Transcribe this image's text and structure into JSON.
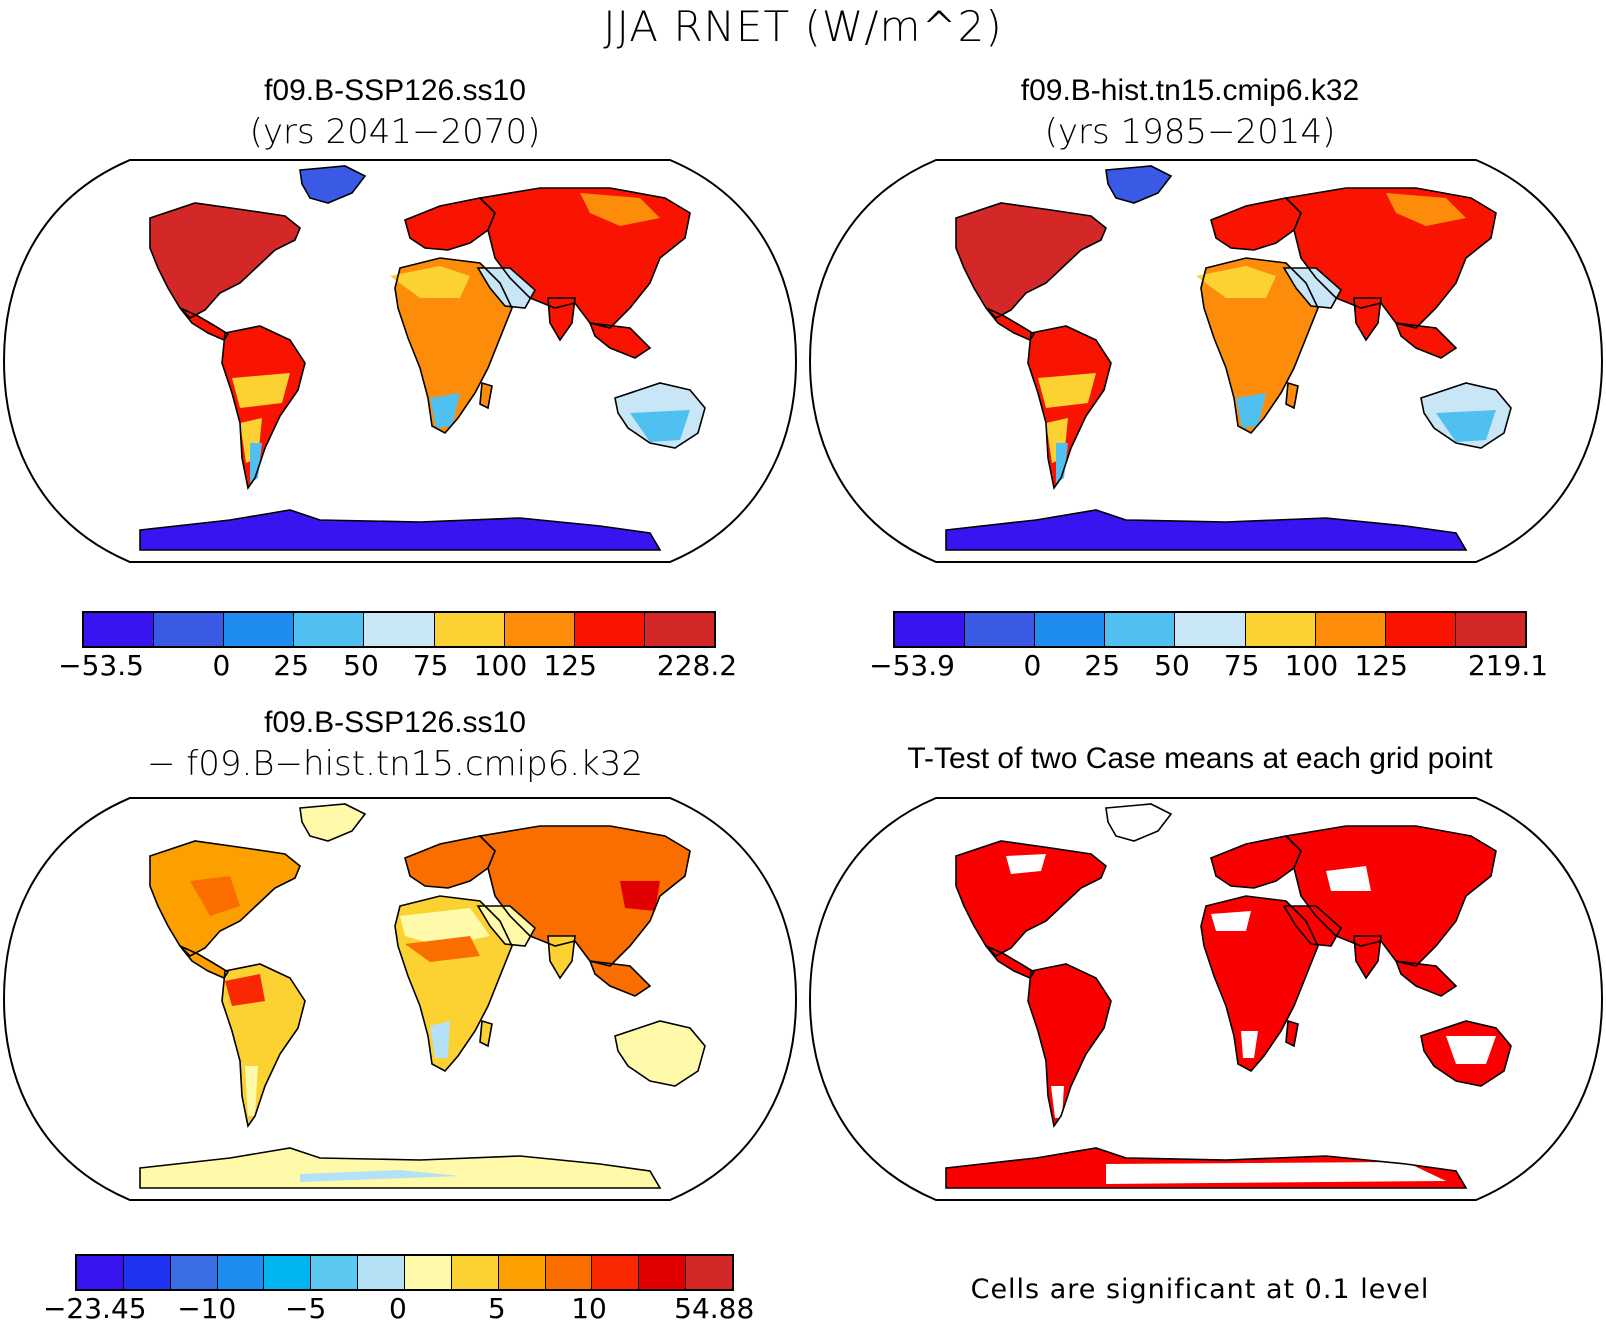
{
  "title": "JJA RNET (W/m^2)",
  "panels": {
    "top_left": {
      "title": "f09.B-SSP126.ss10",
      "subtitle": "(yrs 2041−2070)",
      "colorbar": {
        "labels": [
          "−53.5",
          "0",
          "25",
          "50",
          "75",
          "100",
          "125",
          "228.2"
        ],
        "colors": [
          "#3a14f0",
          "#3a5ae6",
          "#1e8cf0",
          "#50c0f0",
          "#c8e6f6",
          "#fcd232",
          "#fc8c0a",
          "#f81400",
          "#d42828"
        ]
      }
    },
    "top_right": {
      "title": "f09.B-hist.tn15.cmip6.k32",
      "subtitle": "(yrs 1985−2014)",
      "colorbar": {
        "labels": [
          "−53.9",
          "0",
          "25",
          "50",
          "75",
          "100",
          "125",
          "219.1"
        ],
        "colors": [
          "#3a14f0",
          "#3a5ae6",
          "#1e8cf0",
          "#50c0f0",
          "#c8e6f6",
          "#fcd232",
          "#fc8c0a",
          "#f81400",
          "#d42828"
        ]
      }
    },
    "bottom_left": {
      "title": "f09.B-SSP126.ss10",
      "subtitle": "− f09.B−hist.tn15.cmip6.k32",
      "colorbar": {
        "labels": [
          "−23.45",
          "−10",
          "−5",
          "0",
          "5",
          "10",
          "54.88"
        ],
        "colors": [
          "#3a14f0",
          "#1e32f0",
          "#3a6ee6",
          "#1e8cf0",
          "#00b4f0",
          "#5ac8f0",
          "#b4e1f5",
          "#fffaaa",
          "#fcd232",
          "#fca000",
          "#fa6e00",
          "#fa2800",
          "#e10000",
          "#d42828"
        ]
      }
    },
    "bottom_right": {
      "title": "T-Test of two Case means at each grid point",
      "footnote": "Cells are significant at 0.1 level"
    }
  }
}
